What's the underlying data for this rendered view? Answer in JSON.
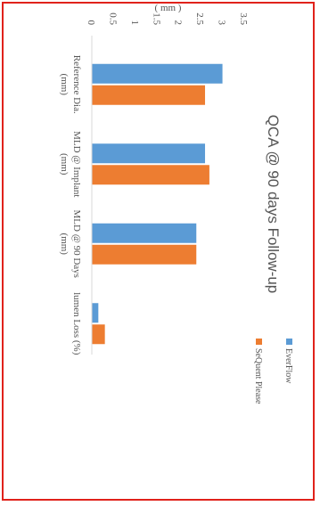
{
  "chart_data": {
    "type": "bar",
    "title": "QCA @ 90 days Follow-up",
    "ylabel": "( mm )",
    "ylim": [
      0,
      3.5
    ],
    "yticks": [
      "0",
      "0.5",
      "1",
      "1.5",
      "2",
      "2.5",
      "3",
      "3.5"
    ],
    "categories": [
      [
        "Reference Dia.",
        "(mm)"
      ],
      [
        "MLD @ Implant",
        "(mm)"
      ],
      [
        "MLD @ 90 Days",
        "(mm)"
      ],
      [
        "lumen Loss (%)"
      ]
    ],
    "series": [
      {
        "name": "EverFlow",
        "color": "#5b9bd5",
        "values": [
          3.0,
          2.6,
          2.4,
          0.15
        ]
      },
      {
        "name": "SeQuent Please",
        "color": "#ed7d31",
        "values": [
          2.6,
          2.7,
          2.4,
          0.3
        ]
      }
    ],
    "legend_position": "right",
    "orientation": "rotated-90-clockwise",
    "grid": false
  }
}
